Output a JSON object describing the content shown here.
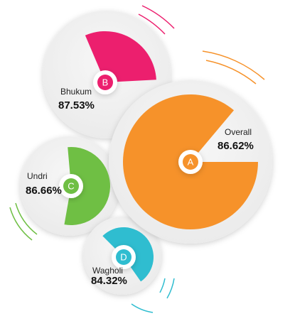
{
  "items": [
    {
      "letter": "B",
      "name": "Bhukum",
      "value": "87.53%",
      "color": "#ec1f6e"
    },
    {
      "letter": "A",
      "name": "Overall",
      "value": "86.62%",
      "color": "#f6922a"
    },
    {
      "letter": "C",
      "name": "Undri",
      "value": "86.66%",
      "color": "#6fbf44"
    },
    {
      "letter": "D",
      "name": "Wagholi",
      "value": "84.32%",
      "color": "#2fbdd0"
    }
  ]
}
